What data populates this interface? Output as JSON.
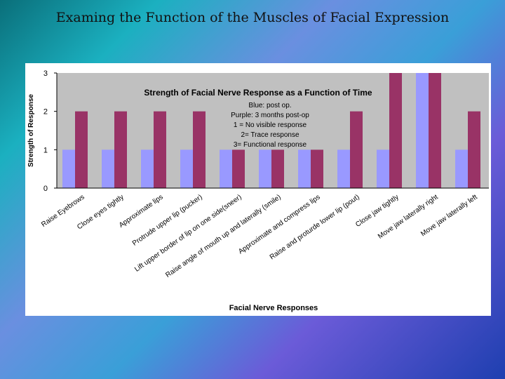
{
  "slide": {
    "title": "Examing the Function of the Muscles of Facial Expression"
  },
  "chart_data": {
    "type": "bar",
    "title": "Strength of Facial Nerve Response as a Function of Time",
    "xlabel": "Facial Nerve Responses",
    "ylabel": "Strength of Response",
    "ylim": [
      0,
      3
    ],
    "yticks": [
      "0",
      "1",
      "2",
      "3"
    ],
    "grid": false,
    "legend_position": "top-right",
    "legend_lines": [
      "Blue: post op.",
      "Purple: 3 months post-op",
      "1 = No visible response",
      "2= Trace response",
      "3= Functional response"
    ],
    "categories": [
      "Raise Eyebrows",
      "Close eyes tightly",
      "Approximate lips",
      "Protrude upper lip (pucker)",
      "Lift upper border of lip on one side(sneer)",
      "Raise angle of mouth up and laterally (smile)",
      "Approximate and compress lips",
      "Raise and proturde lower lip (pout)",
      "Close jaw tightly",
      "Move jaw laterally right",
      "Move jaw laterally left"
    ],
    "series": [
      {
        "name": "",
        "color": "#9999ff",
        "values": [
          1,
          1,
          1,
          1,
          1,
          1,
          1,
          1,
          1,
          3,
          1
        ]
      },
      {
        "name": "",
        "color": "#993366",
        "values": [
          2,
          2,
          2,
          2,
          1,
          1,
          1,
          2,
          3,
          3,
          2
        ]
      }
    ],
    "colors": {
      "plot_bg": "#c0c0c0",
      "blue": "#9999ff",
      "purple": "#993366"
    }
  }
}
